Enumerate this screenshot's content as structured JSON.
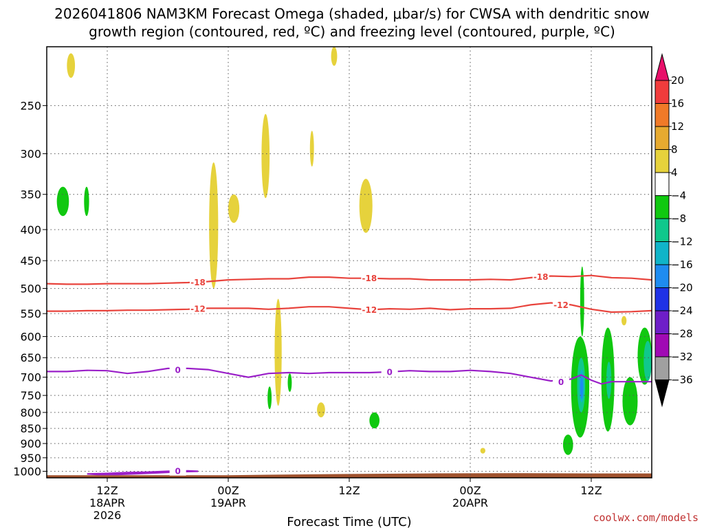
{
  "title": {
    "line1": "2026041806 NAM3KM Forecast Omega (shaded, μbar/s) for CWSA with dendritic snow",
    "line2": "growth region (contoured, red, ºC) and freezing level (contoured, purple, ºC)"
  },
  "credit": "coolwx.com/models",
  "colors": {
    "dendritic": "#e8433c",
    "freezing": "#9a1fc8",
    "ground": "#a0522d",
    "grid": "#555555"
  },
  "chart_data": {
    "type": "heatmap",
    "xlabel": "Forecast Time (UTC)",
    "ylabel": "",
    "x_range_hours_from_init": [
      0,
      60
    ],
    "y_range_mb": [
      200,
      1025
    ],
    "y_ticks": [
      {
        "value": 250,
        "label": "250"
      },
      {
        "value": 300,
        "label": "300"
      },
      {
        "value": 350,
        "label": "350"
      },
      {
        "value": 400,
        "label": "400"
      },
      {
        "value": 450,
        "label": "450"
      },
      {
        "value": 500,
        "label": "500"
      },
      {
        "value": 550,
        "label": "550"
      },
      {
        "value": 600,
        "label": "600"
      },
      {
        "value": 650,
        "label": "650"
      },
      {
        "value": 700,
        "label": "700"
      },
      {
        "value": 750,
        "label": "750"
      },
      {
        "value": 800,
        "label": "800"
      },
      {
        "value": 850,
        "label": "850"
      },
      {
        "value": 900,
        "label": "900"
      },
      {
        "value": 950,
        "label": "950"
      },
      {
        "value": 1000,
        "label": "1000"
      }
    ],
    "x_ticks": [
      {
        "value": 6,
        "line1": "12Z",
        "line2": "18APR",
        "line3": "2026"
      },
      {
        "value": 18,
        "line1": "00Z",
        "line2": "19APR",
        "line3": ""
      },
      {
        "value": 30,
        "line1": "12Z",
        "line2": "",
        "line3": ""
      },
      {
        "value": 42,
        "line1": "00Z",
        "line2": "20APR",
        "line3": ""
      },
      {
        "value": 54,
        "line1": "12Z",
        "line2": "",
        "line3": ""
      }
    ],
    "grid": true,
    "colorbar": {
      "labels": [
        "20",
        "16",
        "12",
        "8",
        "4",
        "−4",
        "−8",
        "−12",
        "−16",
        "−20",
        "−24",
        "−28",
        "−32",
        "−36"
      ],
      "colors": [
        "#e8106a",
        "#f03c3c",
        "#f07a28",
        "#e6aa30",
        "#e6d23c",
        "#ffffff",
        "#10c810",
        "#10c88c",
        "#10b4c8",
        "#1e8cf0",
        "#1e32e6",
        "#6e1ec8",
        "#a00ab4",
        "#a0a0a0",
        "#000000"
      ]
    },
    "contours": [
      {
        "name": "-18",
        "color": "#e8433c",
        "points": [
          [
            0,
            491
          ],
          [
            2,
            492
          ],
          [
            4,
            492
          ],
          [
            6,
            491
          ],
          [
            8,
            491
          ],
          [
            10,
            491
          ],
          [
            12,
            490
          ],
          [
            14,
            489
          ],
          [
            16,
            487
          ],
          [
            18,
            484
          ],
          [
            20,
            483
          ],
          [
            22,
            482
          ],
          [
            24,
            482
          ],
          [
            26,
            479
          ],
          [
            28,
            479
          ],
          [
            30,
            481
          ],
          [
            32,
            481
          ],
          [
            34,
            482
          ],
          [
            36,
            482
          ],
          [
            38,
            484
          ],
          [
            40,
            484
          ],
          [
            42,
            484
          ],
          [
            44,
            483
          ],
          [
            46,
            484
          ],
          [
            48,
            480
          ],
          [
            50,
            477
          ],
          [
            52,
            478
          ],
          [
            54,
            476
          ],
          [
            56,
            480
          ],
          [
            58,
            481
          ],
          [
            60,
            484
          ]
        ],
        "labels": [
          [
            15,
            488
          ],
          [
            32,
            481
          ],
          [
            49,
            478
          ]
        ]
      },
      {
        "name": "-12",
        "color": "#e8433c",
        "points": [
          [
            0,
            545
          ],
          [
            2,
            545
          ],
          [
            4,
            544
          ],
          [
            6,
            544
          ],
          [
            8,
            543
          ],
          [
            10,
            543
          ],
          [
            12,
            542
          ],
          [
            14,
            541
          ],
          [
            16,
            539
          ],
          [
            18,
            539
          ],
          [
            20,
            539
          ],
          [
            22,
            541
          ],
          [
            24,
            539
          ],
          [
            26,
            536
          ],
          [
            28,
            536
          ],
          [
            30,
            539
          ],
          [
            32,
            542
          ],
          [
            34,
            540
          ],
          [
            36,
            541
          ],
          [
            38,
            539
          ],
          [
            40,
            542
          ],
          [
            42,
            540
          ],
          [
            44,
            540
          ],
          [
            46,
            539
          ],
          [
            48,
            532
          ],
          [
            50,
            528
          ],
          [
            52,
            532
          ],
          [
            54,
            541
          ],
          [
            56,
            547
          ],
          [
            58,
            546
          ],
          [
            60,
            544
          ]
        ],
        "labels": [
          [
            15,
            540
          ],
          [
            32,
            542
          ],
          [
            51,
            532
          ]
        ]
      },
      {
        "name": "0",
        "color": "#9a1fc8",
        "points": [
          [
            0,
            685
          ],
          [
            2,
            685
          ],
          [
            4,
            682
          ],
          [
            6,
            683
          ],
          [
            8,
            690
          ],
          [
            10,
            685
          ],
          [
            12,
            677
          ],
          [
            14,
            677
          ],
          [
            16,
            680
          ],
          [
            18,
            690
          ],
          [
            20,
            700
          ],
          [
            22,
            690
          ],
          [
            24,
            688
          ],
          [
            26,
            690
          ],
          [
            28,
            688
          ],
          [
            30,
            688
          ],
          [
            32,
            688
          ],
          [
            34,
            686
          ],
          [
            36,
            683
          ],
          [
            38,
            685
          ],
          [
            40,
            685
          ],
          [
            42,
            682
          ],
          [
            44,
            685
          ],
          [
            46,
            690
          ],
          [
            48,
            700
          ],
          [
            50,
            710
          ],
          [
            52,
            705
          ],
          [
            53,
            694
          ],
          [
            54,
            708
          ],
          [
            55,
            718
          ],
          [
            56,
            712
          ],
          [
            58,
            712
          ],
          [
            60,
            712
          ]
        ],
        "labels": [
          [
            13,
            681
          ],
          [
            34,
            686
          ],
          [
            51,
            713
          ]
        ]
      },
      {
        "name": "0",
        "color": "#9a1fc8",
        "points": [
          [
            4,
            1010
          ],
          [
            6,
            1008
          ],
          [
            8,
            1005
          ],
          [
            10,
            1003
          ],
          [
            12,
            1000
          ],
          [
            14,
            998
          ],
          [
            15,
            1000
          ],
          [
            13,
            1002
          ],
          [
            11,
            1006
          ],
          [
            9,
            1009
          ],
          [
            7,
            1012
          ],
          [
            5,
            1012
          ],
          [
            4,
            1010
          ]
        ],
        "labels": [
          [
            13,
            998
          ]
        ]
      }
    ],
    "shaded_cells": [
      {
        "value": 4,
        "x": [
          2.0,
          2.8
        ],
        "y": [
          205,
          225
        ]
      },
      {
        "value": 4,
        "x": [
          28.2,
          28.8
        ],
        "y": [
          200,
          215
        ]
      },
      {
        "value": 4,
        "x": [
          21.3,
          22.1
        ],
        "y": [
          258,
          355
        ]
      },
      {
        "value": 4,
        "x": [
          26.1,
          26.5
        ],
        "y": [
          275,
          315
        ]
      },
      {
        "value": 4,
        "x": [
          31.0,
          32.3
        ],
        "y": [
          330,
          405
        ]
      },
      {
        "value": 4,
        "x": [
          16.1,
          17.0
        ],
        "y": [
          310,
          500
        ]
      },
      {
        "value": 4,
        "x": [
          18.0,
          19.1
        ],
        "y": [
          350,
          390
        ]
      },
      {
        "value": 4,
        "x": [
          22.6,
          23.3
        ],
        "y": [
          520,
          780
        ]
      },
      {
        "value": 4,
        "x": [
          26.8,
          27.6
        ],
        "y": [
          770,
          815
        ]
      },
      {
        "value": 4,
        "x": [
          43.0,
          43.5
        ],
        "y": [
          915,
          935
        ]
      },
      {
        "value": 4,
        "x": [
          57.0,
          57.5
        ],
        "y": [
          555,
          575
        ]
      },
      {
        "value": -4,
        "x": [
          1.0,
          2.2
        ],
        "y": [
          340,
          380
        ]
      },
      {
        "value": -4,
        "x": [
          3.7,
          4.2
        ],
        "y": [
          340,
          380
        ]
      },
      {
        "value": -4,
        "x": [
          21.9,
          22.3
        ],
        "y": [
          725,
          790
        ]
      },
      {
        "value": -4,
        "x": [
          23.9,
          24.3
        ],
        "y": [
          690,
          740
        ]
      },
      {
        "value": -4,
        "x": [
          32.0,
          33.0
        ],
        "y": [
          800,
          850
        ]
      },
      {
        "value": -4,
        "x": [
          51.2,
          52.2
        ],
        "y": [
          870,
          940
        ]
      },
      {
        "value": -4,
        "x": [
          52.0,
          53.8
        ],
        "y": [
          600,
          880
        ]
      },
      {
        "value": -4,
        "x": [
          52.9,
          53.3
        ],
        "y": [
          460,
          600
        ]
      },
      {
        "value": -4,
        "x": [
          55.0,
          56.3
        ],
        "y": [
          580,
          860
        ]
      },
      {
        "value": -4,
        "x": [
          57.1,
          58.6
        ],
        "y": [
          700,
          840
        ]
      },
      {
        "value": -4,
        "x": [
          58.6,
          60.0
        ],
        "y": [
          580,
          720
        ]
      },
      {
        "value": -8,
        "x": [
          52.6,
          53.4
        ],
        "y": [
          650,
          800
        ]
      },
      {
        "value": -8,
        "x": [
          55.5,
          56.0
        ],
        "y": [
          660,
          760
        ]
      },
      {
        "value": -8,
        "x": [
          59.2,
          60.0
        ],
        "y": [
          610,
          710
        ]
      },
      {
        "value": -12,
        "x": [
          52.8,
          53.3
        ],
        "y": [
          680,
          770
        ]
      },
      {
        "value": -16,
        "x": [
          52.9,
          53.2
        ],
        "y": [
          700,
          760
        ]
      }
    ],
    "ground": [
      [
        0,
        1015
      ],
      [
        12,
        1015
      ],
      [
        18,
        1015
      ],
      [
        22,
        1013
      ],
      [
        30,
        1010
      ],
      [
        38,
        1008
      ],
      [
        46,
        1007
      ],
      [
        54,
        1008
      ],
      [
        60,
        1008
      ]
    ]
  }
}
